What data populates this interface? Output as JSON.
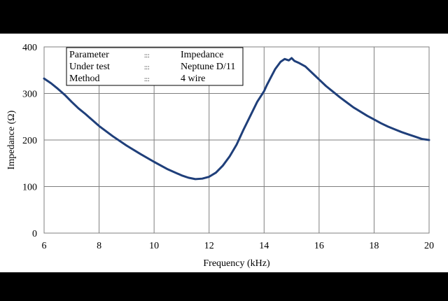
{
  "chart_data": {
    "type": "line",
    "title": "",
    "xlabel": "Frequency (kHz)",
    "ylabel": "Impedance (Ω)",
    "xlim": [
      6,
      20
    ],
    "ylim": [
      0,
      400
    ],
    "x_ticks": [
      6,
      8,
      10,
      12,
      14,
      16,
      18,
      20
    ],
    "y_ticks": [
      0,
      100,
      200,
      300,
      400
    ],
    "grid": true,
    "line_color": "#1f3f7a",
    "legend_table": [
      {
        "name": "Parameter",
        "sep": ":::",
        "value": "Impedance"
      },
      {
        "name": "Under test",
        "sep": ":::",
        "value": "Neptune D/11"
      },
      {
        "name": "Method",
        "sep": ":::",
        "value": "4 wire"
      }
    ],
    "series": [
      {
        "x": [
          6.0,
          6.25,
          6.5,
          6.75,
          7.0,
          7.25,
          7.5,
          7.75,
          8.0,
          8.5,
          9.0,
          9.5,
          10.0,
          10.5,
          11.0,
          11.25,
          11.5,
          11.75,
          12.0,
          12.25,
          12.5,
          12.75,
          13.0,
          13.25,
          13.5,
          13.75,
          14.0,
          14.1,
          14.25,
          14.4,
          14.6,
          14.75,
          14.9,
          15.0,
          15.1,
          15.25,
          15.5,
          15.75,
          16.0,
          16.25,
          16.5,
          16.75,
          17.0,
          17.25,
          17.5,
          17.75,
          18.0,
          18.25,
          18.5,
          18.75,
          19.0,
          19.25,
          19.5,
          19.75,
          20.0
        ],
        "y": [
          332,
          322,
          310,
          297,
          282,
          268,
          256,
          243,
          230,
          208,
          188,
          170,
          153,
          137,
          124,
          119,
          116,
          117,
          121,
          130,
          145,
          165,
          190,
          222,
          252,
          282,
          305,
          318,
          335,
          352,
          368,
          374,
          371,
          376,
          370,
          366,
          358,
          344,
          330,
          316,
          304,
          292,
          281,
          270,
          261,
          252,
          244,
          236,
          229,
          223,
          217,
          212,
          207,
          202,
          200
        ]
      }
    ]
  }
}
